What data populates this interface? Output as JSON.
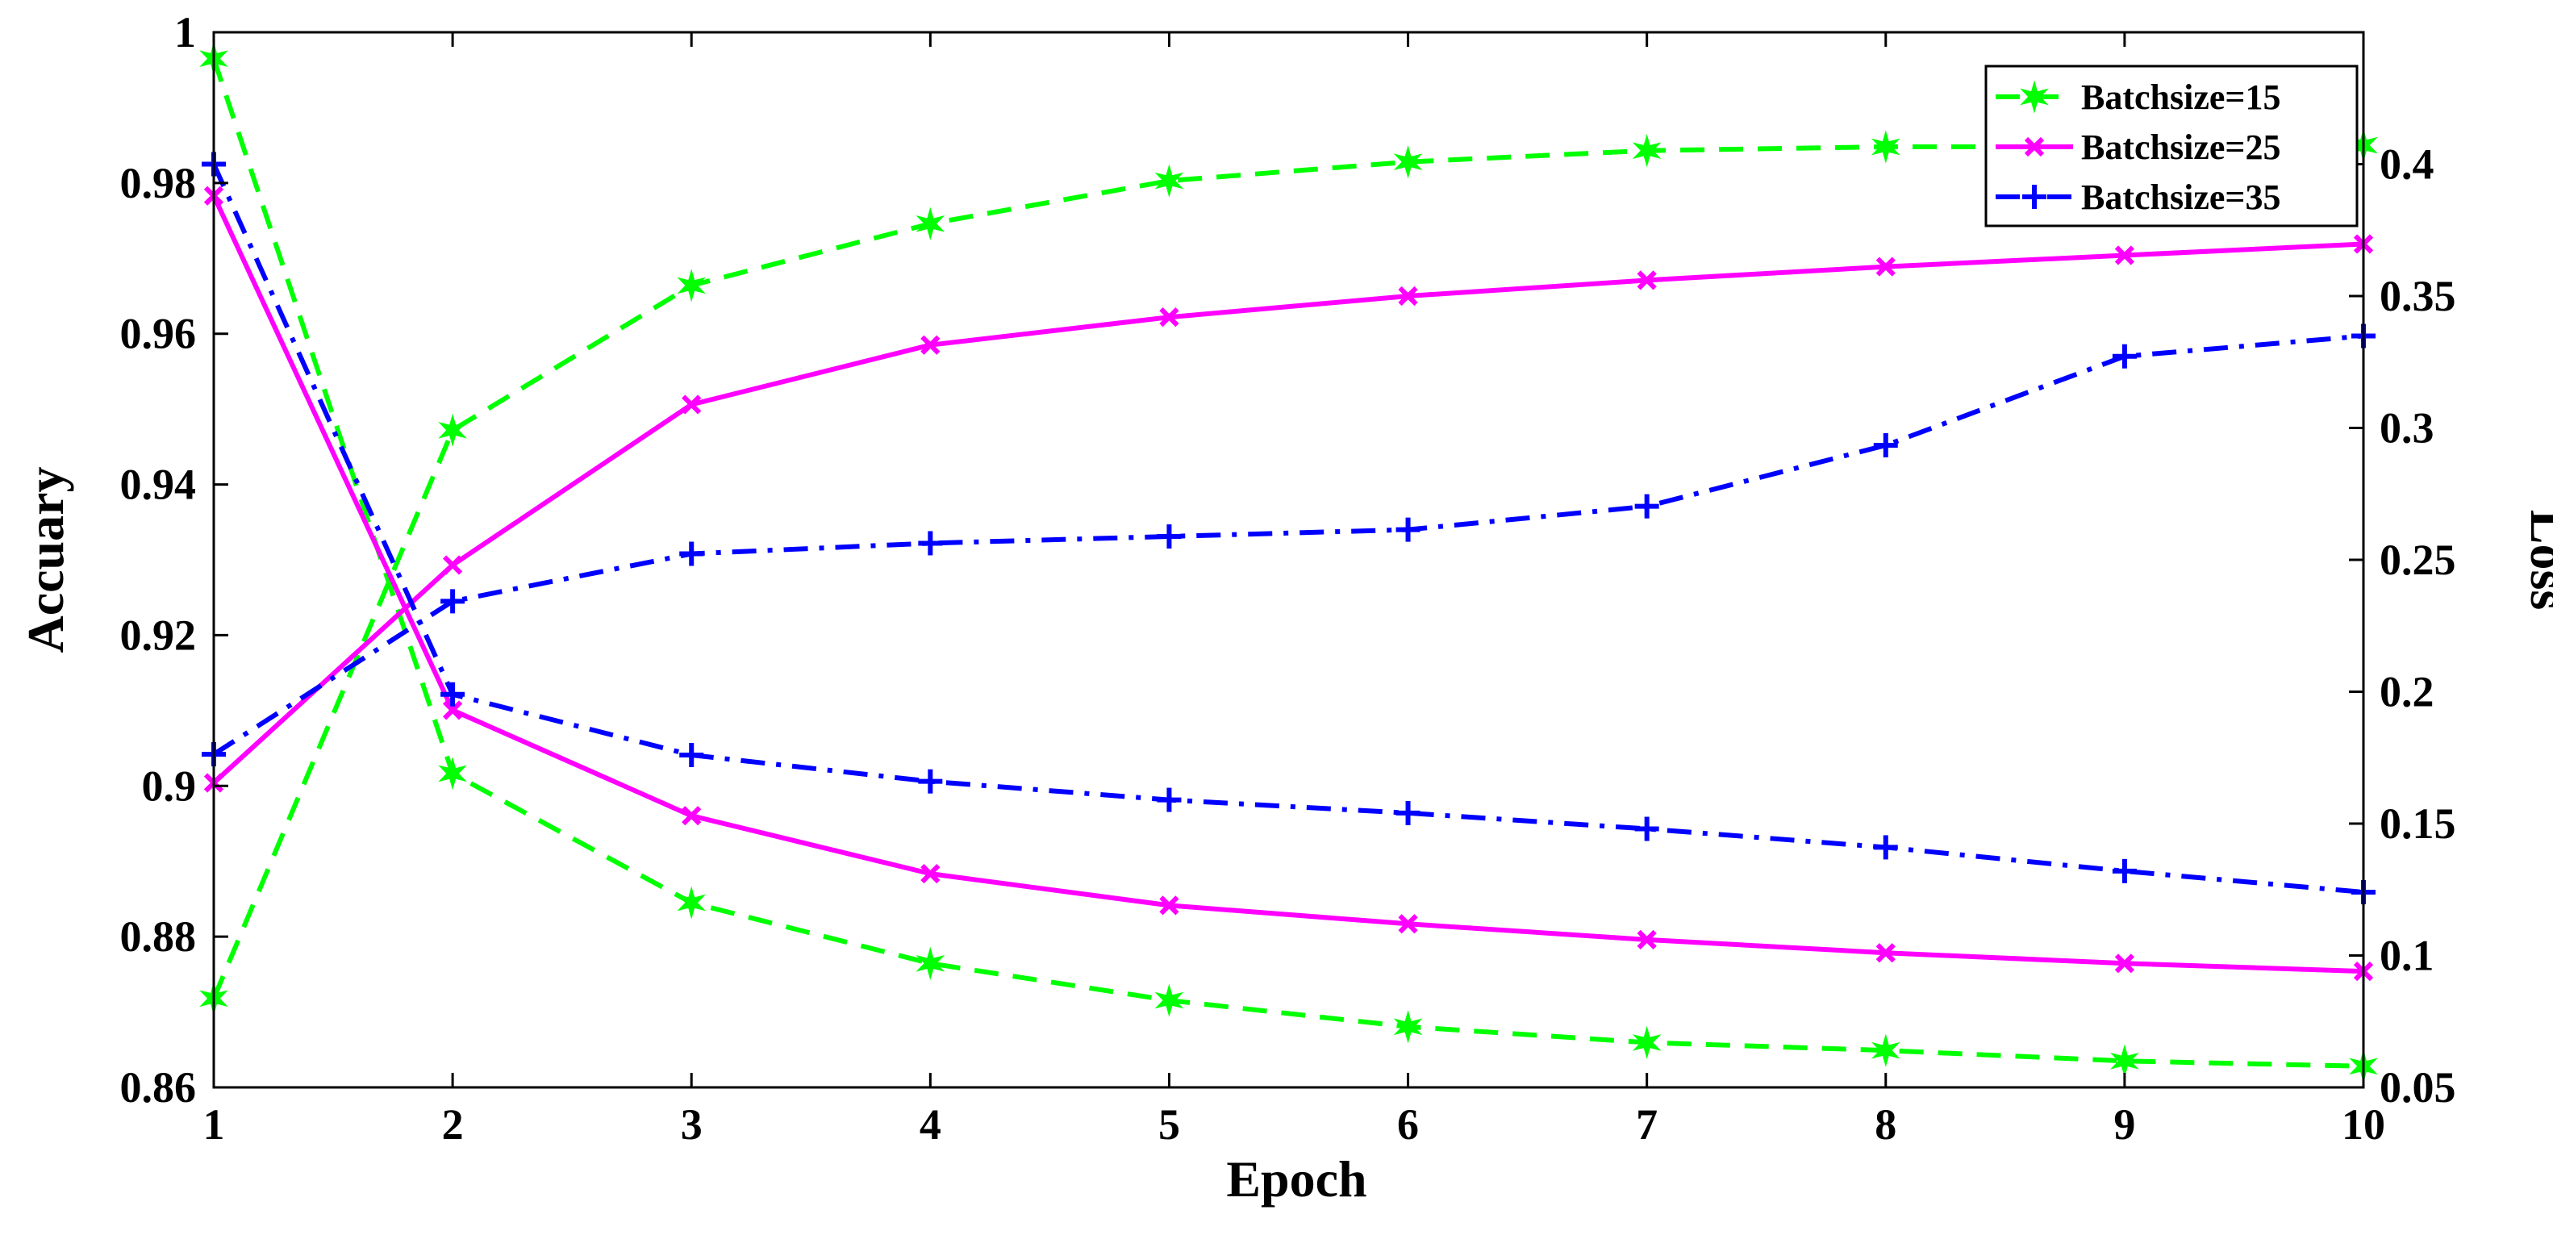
{
  "chart_data": {
    "type": "line",
    "title": "",
    "xlabel": "Epoch",
    "ylabel_left": "Accuary",
    "ylabel_right": "Loss",
    "x": [
      1,
      2,
      3,
      4,
      5,
      6,
      7,
      8,
      9,
      10
    ],
    "xlim": [
      1,
      10
    ],
    "xticks": [
      "1",
      "2",
      "3",
      "4",
      "5",
      "6",
      "7",
      "8",
      "9",
      "10"
    ],
    "ylim_left": [
      0.86,
      1.0
    ],
    "yticks_left": [
      "0.86",
      "0.88",
      "0.9",
      "0.92",
      "0.94",
      "0.96",
      "0.98",
      "1"
    ],
    "ylim_right": [
      0.05,
      0.45
    ],
    "yticks_right": [
      "0.05",
      "0.1",
      "0.15",
      "0.2",
      "0.25",
      "0.3",
      "0.35",
      "0.4"
    ],
    "grid": false,
    "legend_position": "top-right",
    "series": [
      {
        "name": "Batchsize=15",
        "color": "#00ff00",
        "style": "dashed",
        "marker": "star",
        "accuracy": [
          0.8718,
          0.9472,
          0.9664,
          0.9746,
          0.9803,
          0.9828,
          0.9843,
          0.9848,
          0.9848,
          0.985
        ],
        "loss": [
          0.44,
          0.169,
          0.12,
          0.097,
          0.083,
          0.073,
          0.067,
          0.064,
          0.06,
          0.058
        ]
      },
      {
        "name": "Batchsize=25",
        "color": "#ff00ff",
        "style": "solid",
        "marker": "x",
        "accuracy": [
          0.9004,
          0.9293,
          0.9506,
          0.9585,
          0.9622,
          0.965,
          0.9671,
          0.9689,
          0.9704,
          0.9719
        ],
        "loss": [
          0.388,
          0.193,
          0.153,
          0.131,
          0.119,
          0.112,
          0.106,
          0.101,
          0.097,
          0.094
        ]
      },
      {
        "name": "Batchsize=35",
        "color": "#0000ff",
        "style": "dashdot",
        "marker": "plus",
        "accuracy": [
          0.9042,
          0.9245,
          0.9308,
          0.9322,
          0.9331,
          0.934,
          0.9371,
          0.9452,
          0.957,
          0.9597
        ],
        "loss": [
          0.4,
          0.199,
          0.176,
          0.166,
          0.159,
          0.154,
          0.148,
          0.141,
          0.132,
          0.124
        ]
      }
    ]
  }
}
